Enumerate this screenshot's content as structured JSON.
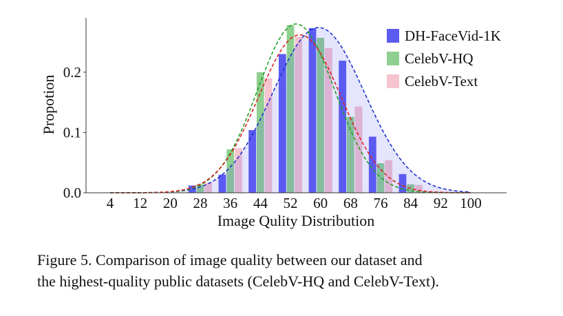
{
  "caption": {
    "line1": "Figure 5.  Comparison of image quality between our dataset and",
    "line2": "the highest-quality public datasets (CelebV-HQ and CelebV-Text)."
  },
  "chart_data": {
    "type": "bar",
    "xlabel": "Image Qulity Distribution",
    "ylabel": "Propotion",
    "x_ticks": [
      4,
      12,
      20,
      28,
      36,
      44,
      52,
      60,
      68,
      76,
      84,
      92,
      100
    ],
    "y_ticks": [
      "0.0",
      "0.1",
      "0.2"
    ],
    "xlim": [
      0,
      105
    ],
    "ylim": [
      0,
      0.29
    ],
    "grid": false,
    "legend_position": "top-right",
    "series": [
      {
        "name": "DH-FaceVid-1K",
        "color": "#5b5bf2",
        "curve_color": "#2233cc",
        "bins": [
          28,
          36,
          44,
          52,
          60,
          68,
          76,
          84
        ],
        "values": [
          0.012,
          0.03,
          0.104,
          0.23,
          0.273,
          0.219,
          0.093,
          0.031
        ],
        "curve": {
          "mean": 59.5,
          "sd": 12.2,
          "peak": 0.274
        }
      },
      {
        "name": "CelebV-HQ",
        "color": "#8fcf8f",
        "curve_color": "#22a022",
        "bins": [
          28,
          36,
          44,
          52,
          60,
          68,
          76,
          84
        ],
        "values": [
          0.014,
          0.072,
          0.2,
          0.278,
          0.257,
          0.126,
          0.049,
          0.014
        ],
        "curve": {
          "mean": 53.5,
          "sd": 10.3,
          "peak": 0.28
        }
      },
      {
        "name": "CelebV-Text",
        "color": "#f6c4cf",
        "curve_color": "#dd2222",
        "bins": [
          28,
          36,
          44,
          52,
          60,
          68,
          76,
          84
        ],
        "values": [
          0.017,
          0.074,
          0.19,
          0.259,
          0.24,
          0.143,
          0.054,
          0.013
        ],
        "curve": {
          "mean": 54.5,
          "sd": 11.0,
          "peak": 0.262
        }
      }
    ]
  }
}
